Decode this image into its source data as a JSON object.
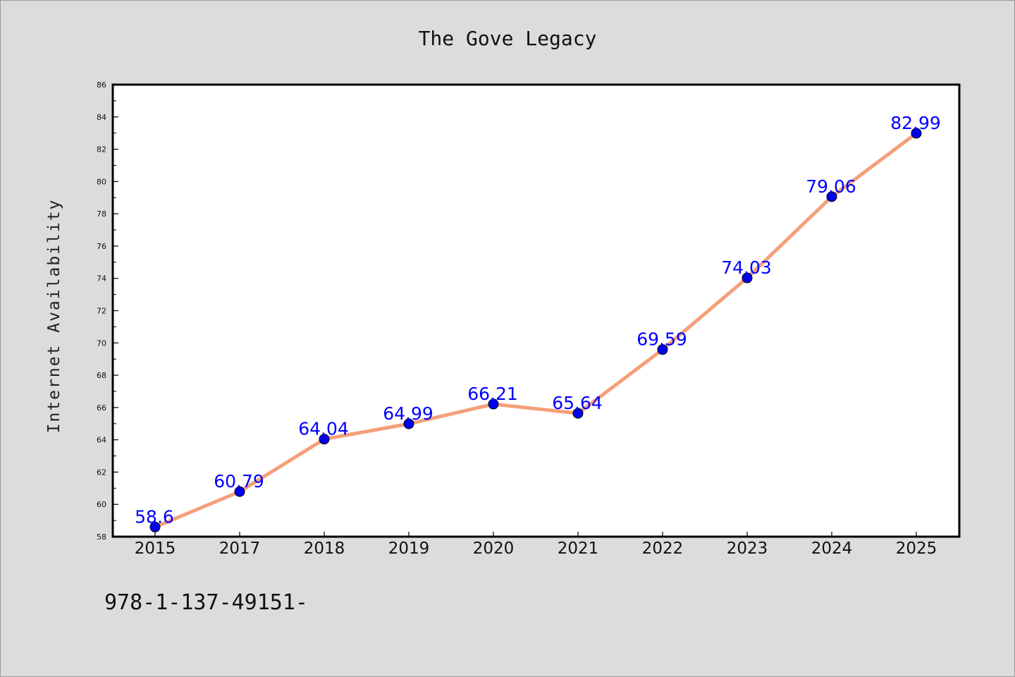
{
  "chart_data": {
    "type": "line",
    "title": "The Gove Legacy",
    "xlabel": "",
    "ylabel": "Internet Availability",
    "categories": [
      "2015",
      "2017",
      "2018",
      "2019",
      "2020",
      "2021",
      "2022",
      "2023",
      "2024",
      "2025"
    ],
    "series": [
      {
        "values": [
          58.6,
          60.79,
          64.04,
          64.99,
          66.21,
          65.64,
          69.59,
          74.03,
          79.06,
          82.99
        ],
        "labels": [
          "58.6",
          "60.79",
          "64.04",
          "64.99",
          "66.21",
          "65.64",
          "69.59",
          "74.03",
          "79.06",
          "82.99"
        ]
      }
    ],
    "ylim": [
      58,
      86
    ],
    "yticks": [
      "58",
      "60",
      "62",
      "64",
      "66",
      "68",
      "70",
      "72",
      "74",
      "76",
      "78",
      "80",
      "82",
      "84",
      "86"
    ],
    "grid": false,
    "legend": "none",
    "colors": {
      "line": "#f4a07a",
      "marker": "#0000ee",
      "data_label": "#0000ff",
      "background": "#dcdcdc",
      "plot_bg": "#ffffff"
    }
  },
  "footer": {
    "text": "978-1-137-49151-"
  }
}
